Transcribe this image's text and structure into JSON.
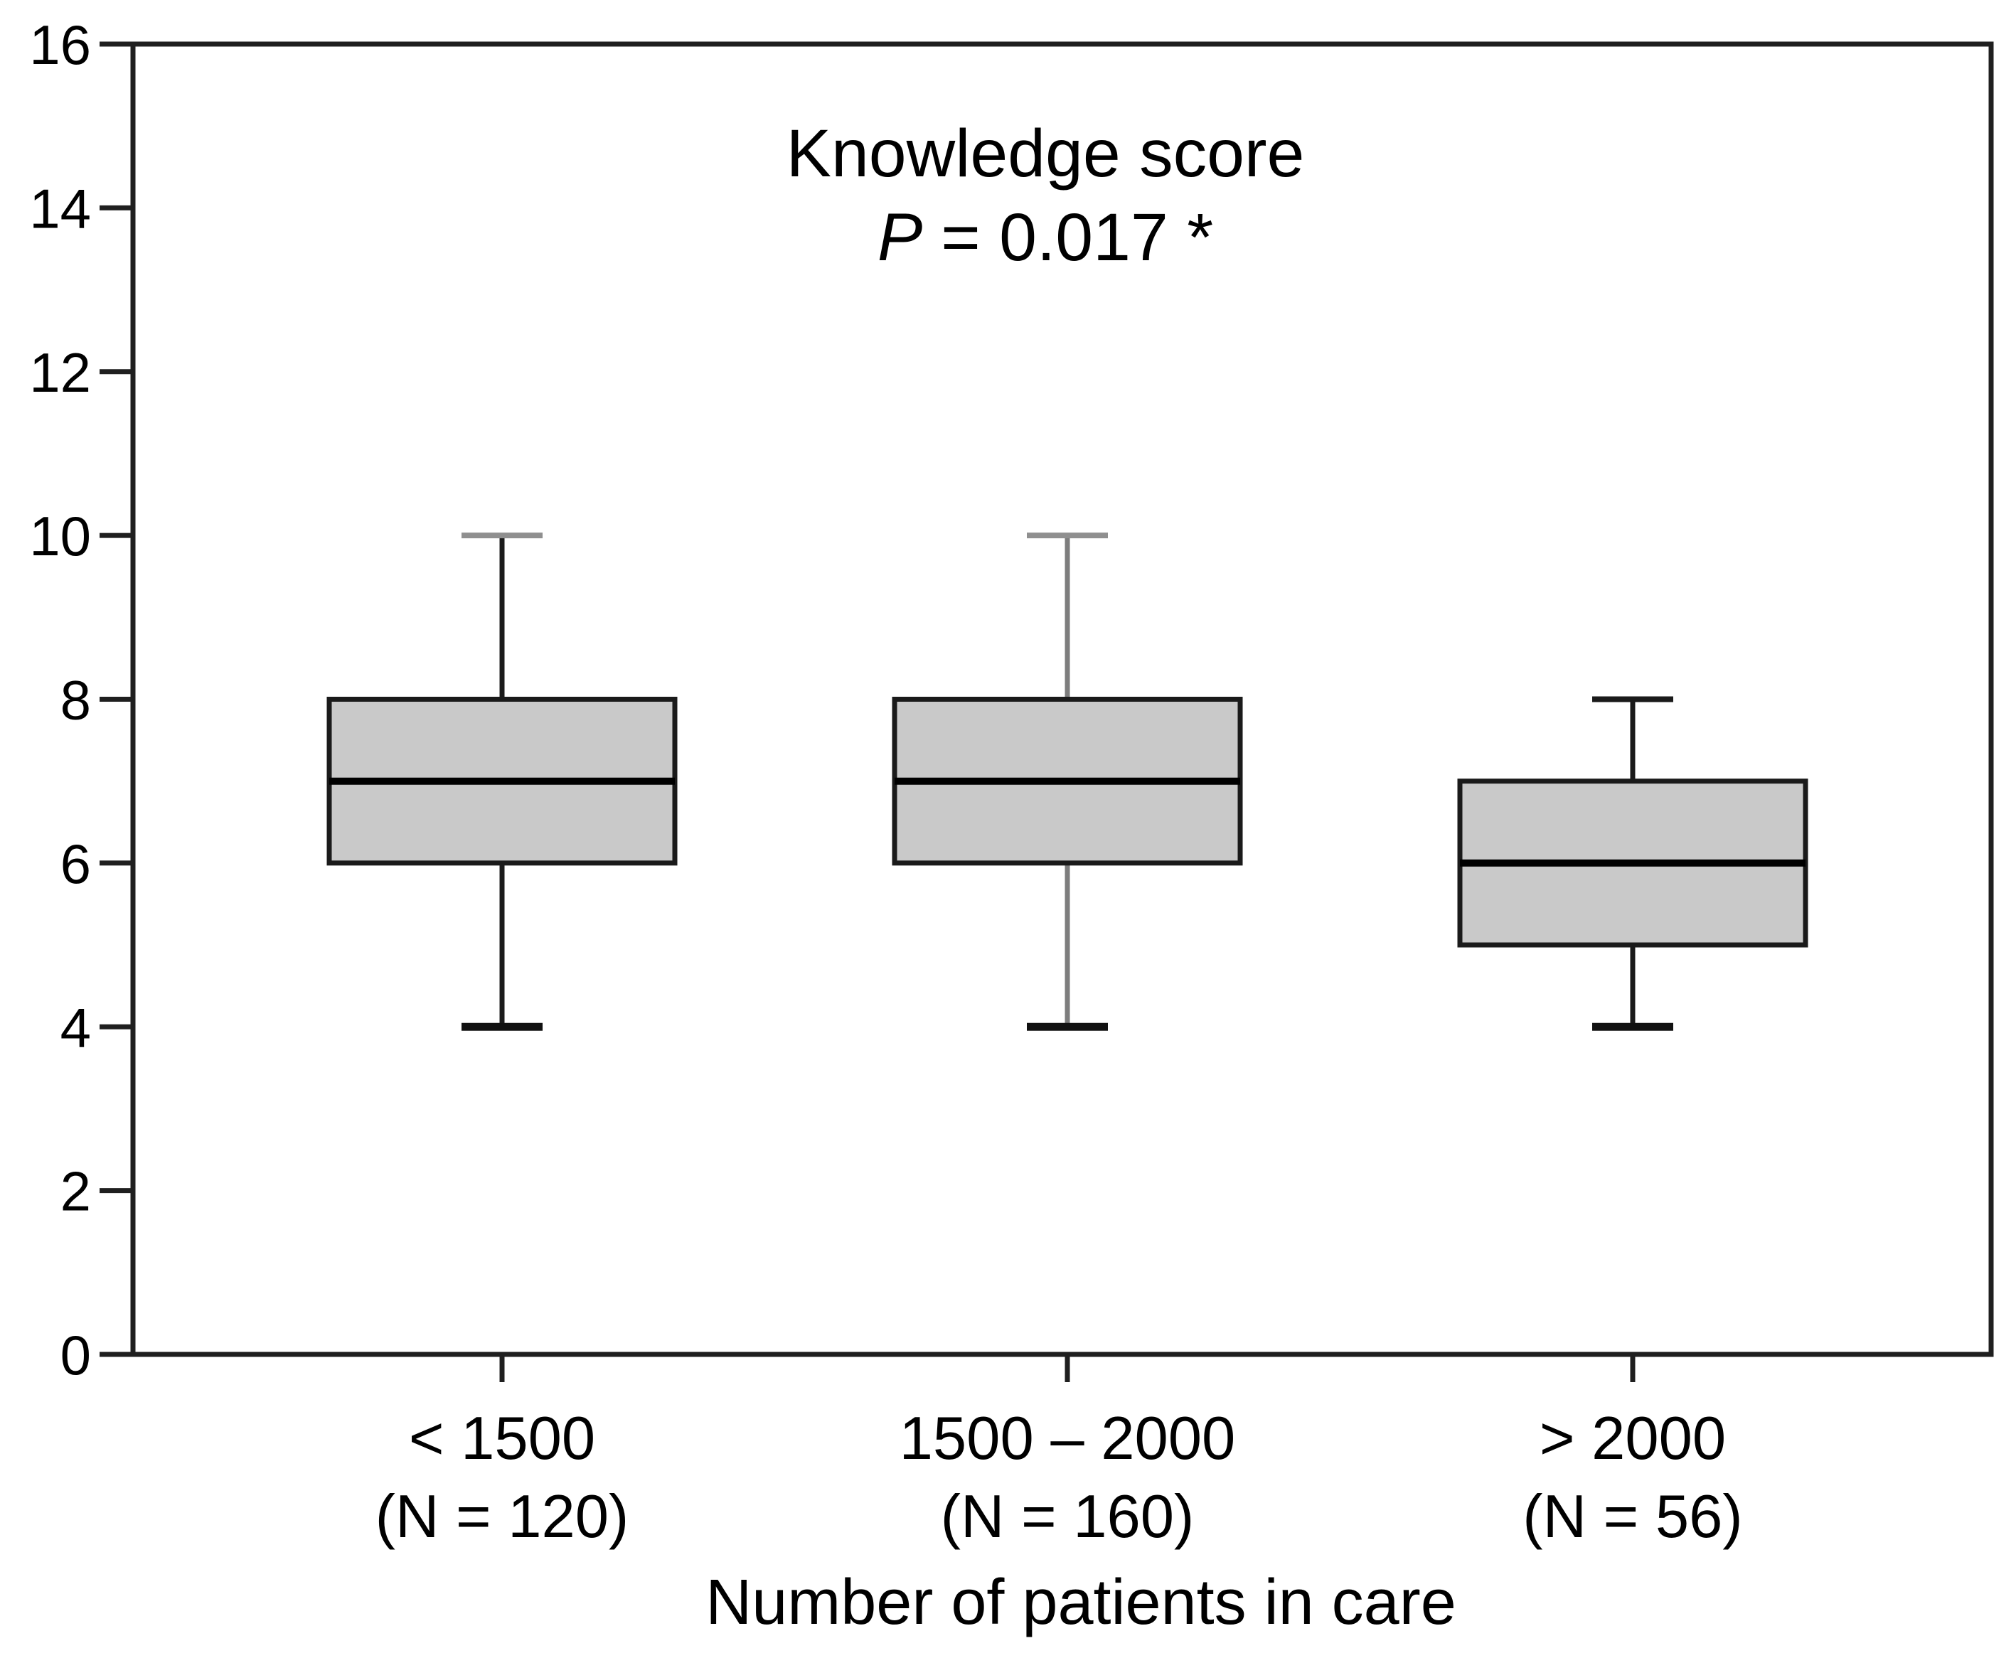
{
  "chart_data": {
    "type": "boxplot",
    "title": "Knowledge score",
    "subtitle": "P = 0.017 *",
    "p_label_italic": "P",
    "p_label_rest": "= 0.017 *",
    "p_value": 0.017,
    "significance_marker": "*",
    "xlabel": "Number of patients in care",
    "ylabel": "",
    "ylim": [
      0,
      16
    ],
    "ytick_interval": 2,
    "yticks": [
      0,
      2,
      4,
      6,
      8,
      10,
      12,
      14,
      16
    ],
    "grid": false,
    "legend": "none",
    "categories": [
      {
        "label": "< 1500",
        "n_label": "(N = 120)",
        "n": 120,
        "whisker_low": 4,
        "q1": 6,
        "median": 7,
        "q3": 8,
        "whisker_high": 10
      },
      {
        "label": "1500 – 2000",
        "n_label": "(N = 160)",
        "n": 160,
        "whisker_low": 4,
        "q1": 6,
        "median": 7,
        "q3": 8,
        "whisker_high": 10
      },
      {
        "label": "> 2000",
        "n_label": "(N = 56)",
        "n": 56,
        "whisker_low": 4,
        "q1": 5,
        "median": 6,
        "q3": 7,
        "whisker_high": 8
      }
    ],
    "style": {
      "box_fill": "#c9c9c9",
      "box_border": "#1a1a1a",
      "median_color": "#000000",
      "axis_color": "#1f1f1f",
      "text_color": "#000000",
      "whiskers": [
        {
          "stem": "#1a1a1a",
          "cap_top": "#8f8f8f",
          "cap_bottom": "#111111"
        },
        {
          "stem": "#7d7d7d",
          "cap_top": "#8f8f8f",
          "cap_bottom": "#111111"
        },
        {
          "stem": "#1a1a1a",
          "cap_top": "#1a1a1a",
          "cap_bottom": "#111111"
        }
      ]
    }
  }
}
